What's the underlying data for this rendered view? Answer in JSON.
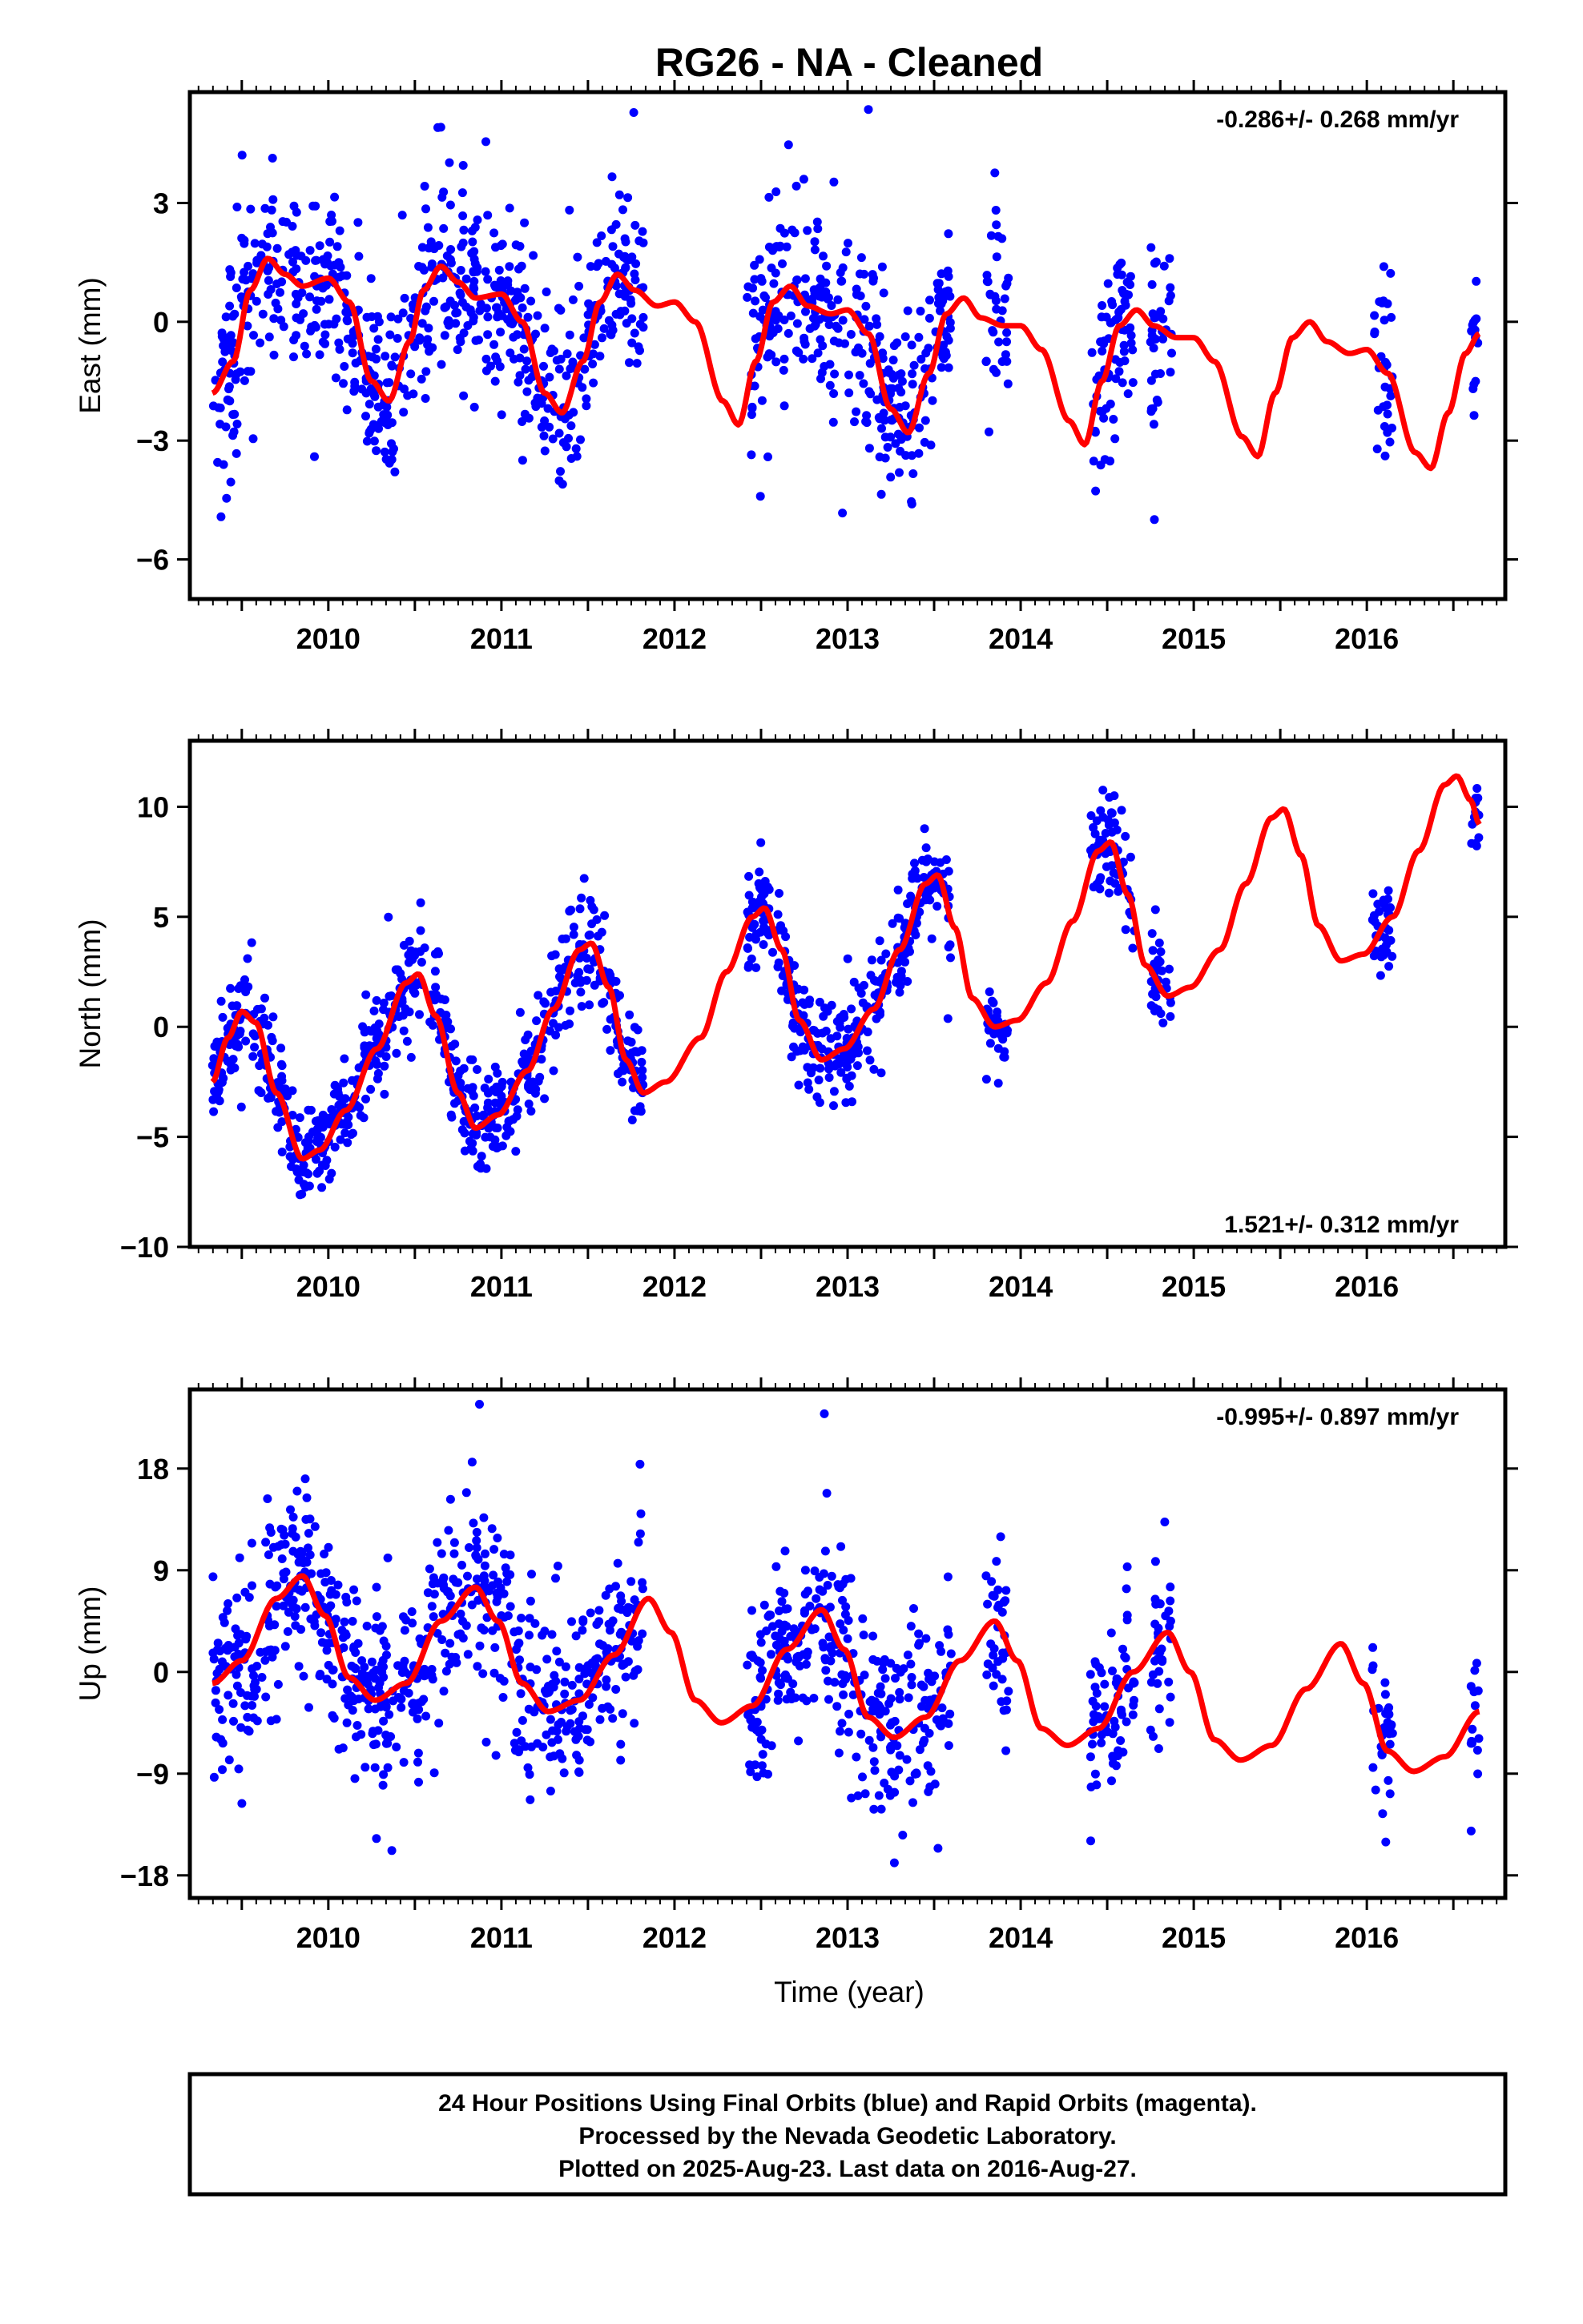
{
  "title": "RG26  - NA - Cleaned",
  "xlabel": "Time (year)",
  "footer": {
    "line1": "24 Hour Positions Using Final Orbits (blue) and Rapid Orbits (magenta).",
    "line2": "Processed by the Nevada Geodetic Laboratory.",
    "line3": "Plotted on 2025-Aug-23. Last data on 2016-Aug-27."
  },
  "colors": {
    "points": "#0000ff",
    "model": "#ff0000",
    "frame": "#000000"
  },
  "chart_data": [
    {
      "type": "scatter",
      "component": "east",
      "ylabel": "East (mm)",
      "rate_text": "-0.286+/- 0.268 mm/yr",
      "rate_position": "top-right",
      "xlim": [
        2009.2,
        2016.8
      ],
      "ylim": [
        -7.0,
        5.8
      ],
      "xticks": [
        2010,
        2011,
        2012,
        2013,
        2014,
        2015,
        2016
      ],
      "yticks": [
        -6,
        -3,
        0,
        3
      ],
      "data_spans": [
        [
          2009.33,
          2011.82
        ],
        [
          2012.42,
          2013.6
        ],
        [
          2013.8,
          2013.93
        ],
        [
          2014.4,
          2014.66
        ],
        [
          2014.75,
          2014.88
        ],
        [
          2016.03,
          2016.15
        ],
        [
          2016.6,
          2016.65
        ]
      ],
      "model": {
        "description": "red fitted curve, knots in (year, mm)",
        "knots": [
          [
            2009.33,
            -1.8
          ],
          [
            2009.45,
            -1.0
          ],
          [
            2009.55,
            0.8
          ],
          [
            2009.65,
            1.6
          ],
          [
            2009.75,
            1.2
          ],
          [
            2009.85,
            0.9
          ],
          [
            2010.0,
            1.1
          ],
          [
            2010.12,
            0.5
          ],
          [
            2010.25,
            -1.5
          ],
          [
            2010.35,
            -2.0
          ],
          [
            2010.47,
            -0.5
          ],
          [
            2010.55,
            0.8
          ],
          [
            2010.65,
            1.4
          ],
          [
            2010.75,
            1.0
          ],
          [
            2010.85,
            0.6
          ],
          [
            2011.0,
            0.7
          ],
          [
            2011.12,
            0.0
          ],
          [
            2011.25,
            -1.8
          ],
          [
            2011.35,
            -2.3
          ],
          [
            2011.47,
            -1.0
          ],
          [
            2011.57,
            0.5
          ],
          [
            2011.67,
            1.2
          ],
          [
            2011.77,
            0.8
          ],
          [
            2011.9,
            0.4
          ],
          [
            2012.0,
            0.5
          ],
          [
            2012.12,
            0.0
          ],
          [
            2012.28,
            -2.0
          ],
          [
            2012.37,
            -2.6
          ],
          [
            2012.47,
            -1.0
          ],
          [
            2012.57,
            0.5
          ],
          [
            2012.67,
            0.9
          ],
          [
            2012.77,
            0.4
          ],
          [
            2012.9,
            0.2
          ],
          [
            2013.0,
            0.3
          ],
          [
            2013.12,
            -0.3
          ],
          [
            2013.25,
            -2.2
          ],
          [
            2013.35,
            -2.8
          ],
          [
            2013.47,
            -1.3
          ],
          [
            2013.57,
            0.2
          ],
          [
            2013.67,
            0.6
          ],
          [
            2013.77,
            0.1
          ],
          [
            2013.9,
            -0.1
          ],
          [
            2014.0,
            -0.1
          ],
          [
            2014.12,
            -0.7
          ],
          [
            2014.28,
            -2.5
          ],
          [
            2014.37,
            -3.1
          ],
          [
            2014.47,
            -1.5
          ],
          [
            2014.57,
            -0.1
          ],
          [
            2014.67,
            0.3
          ],
          [
            2014.77,
            -0.1
          ],
          [
            2014.9,
            -0.4
          ],
          [
            2015.0,
            -0.4
          ],
          [
            2015.12,
            -1.0
          ],
          [
            2015.28,
            -2.9
          ],
          [
            2015.37,
            -3.4
          ],
          [
            2015.47,
            -1.8
          ],
          [
            2015.57,
            -0.4
          ],
          [
            2015.67,
            0.0
          ],
          [
            2015.77,
            -0.5
          ],
          [
            2015.9,
            -0.8
          ],
          [
            2016.0,
            -0.7
          ],
          [
            2016.12,
            -1.3
          ],
          [
            2016.28,
            -3.3
          ],
          [
            2016.37,
            -3.7
          ],
          [
            2016.47,
            -2.3
          ],
          [
            2016.57,
            -0.8
          ],
          [
            2016.65,
            -0.3
          ]
        ]
      },
      "noise_mm": 1.2,
      "point_count": 1180,
      "seed": 11
    },
    {
      "type": "scatter",
      "component": "north",
      "ylabel": "North (mm)",
      "rate_text": "1.521+/- 0.312 mm/yr",
      "rate_position": "bottom-right",
      "xlim": [
        2009.2,
        2016.8
      ],
      "ylim": [
        -10.0,
        13.0
      ],
      "xticks": [
        2010,
        2011,
        2012,
        2013,
        2014,
        2015,
        2016
      ],
      "yticks": [
        -10,
        -5,
        0,
        5,
        10
      ],
      "data_spans": [
        [
          2009.33,
          2011.82
        ],
        [
          2012.42,
          2013.6
        ],
        [
          2013.8,
          2013.93
        ],
        [
          2014.4,
          2014.66
        ],
        [
          2014.75,
          2014.88
        ],
        [
          2016.03,
          2016.15
        ],
        [
          2016.6,
          2016.65
        ]
      ],
      "model": {
        "description": "red fitted curve, knots in (year, mm)",
        "knots": [
          [
            2009.33,
            -2.5
          ],
          [
            2009.42,
            -0.5
          ],
          [
            2009.5,
            0.7
          ],
          [
            2009.58,
            0.2
          ],
          [
            2009.7,
            -3.0
          ],
          [
            2009.85,
            -6.0
          ],
          [
            2009.95,
            -5.6
          ],
          [
            2010.1,
            -3.8
          ],
          [
            2010.28,
            -1.0
          ],
          [
            2010.45,
            2.0
          ],
          [
            2010.52,
            2.4
          ],
          [
            2010.62,
            0.5
          ],
          [
            2010.75,
            -3.0
          ],
          [
            2010.85,
            -4.6
          ],
          [
            2010.98,
            -4.0
          ],
          [
            2011.15,
            -2.0
          ],
          [
            2011.3,
            0.8
          ],
          [
            2011.45,
            3.5
          ],
          [
            2011.52,
            3.8
          ],
          [
            2011.62,
            1.8
          ],
          [
            2011.72,
            -1.5
          ],
          [
            2011.82,
            -3.0
          ],
          [
            2011.95,
            -2.5
          ],
          [
            2012.15,
            -0.5
          ],
          [
            2012.3,
            2.5
          ],
          [
            2012.45,
            5.0
          ],
          [
            2012.52,
            5.4
          ],
          [
            2012.62,
            3.5
          ],
          [
            2012.72,
            0.3
          ],
          [
            2012.85,
            -1.5
          ],
          [
            2012.98,
            -1.0
          ],
          [
            2013.15,
            0.8
          ],
          [
            2013.3,
            3.5
          ],
          [
            2013.45,
            6.5
          ],
          [
            2013.52,
            6.9
          ],
          [
            2013.62,
            4.5
          ],
          [
            2013.72,
            1.3
          ],
          [
            2013.85,
            0.0
          ],
          [
            2013.98,
            0.3
          ],
          [
            2014.15,
            2.0
          ],
          [
            2014.3,
            4.8
          ],
          [
            2014.45,
            8.0
          ],
          [
            2014.52,
            8.4
          ],
          [
            2014.62,
            6.0
          ],
          [
            2014.72,
            2.8
          ],
          [
            2014.85,
            1.4
          ],
          [
            2014.98,
            1.8
          ],
          [
            2015.15,
            3.5
          ],
          [
            2015.3,
            6.5
          ],
          [
            2015.45,
            9.5
          ],
          [
            2015.52,
            9.9
          ],
          [
            2015.62,
            7.8
          ],
          [
            2015.72,
            4.6
          ],
          [
            2015.85,
            3.0
          ],
          [
            2015.98,
            3.3
          ],
          [
            2016.15,
            5.0
          ],
          [
            2016.3,
            8.0
          ],
          [
            2016.45,
            11.0
          ],
          [
            2016.52,
            11.4
          ],
          [
            2016.6,
            10.3
          ],
          [
            2016.65,
            9.2
          ]
        ]
      },
      "noise_mm": 1.1,
      "point_count": 1180,
      "seed": 22
    },
    {
      "type": "scatter",
      "component": "up",
      "ylabel": "Up (mm)",
      "rate_text": "-0.995+/- 0.897 mm/yr",
      "rate_position": "top-right",
      "xlim": [
        2009.2,
        2016.8
      ],
      "ylim": [
        -20.0,
        25.0
      ],
      "xticks": [
        2010,
        2011,
        2012,
        2013,
        2014,
        2015,
        2016
      ],
      "yticks": [
        -18,
        -9,
        0,
        9,
        18
      ],
      "data_spans": [
        [
          2009.33,
          2011.82
        ],
        [
          2012.42,
          2013.6
        ],
        [
          2013.8,
          2013.93
        ],
        [
          2014.4,
          2014.66
        ],
        [
          2014.75,
          2014.88
        ],
        [
          2016.03,
          2016.15
        ],
        [
          2016.6,
          2016.65
        ]
      ],
      "model": {
        "description": "red fitted curve, knots in (year, mm)",
        "knots": [
          [
            2009.33,
            -1.0
          ],
          [
            2009.5,
            1.0
          ],
          [
            2009.7,
            6.5
          ],
          [
            2009.85,
            8.5
          ],
          [
            2009.98,
            5.0
          ],
          [
            2010.12,
            -0.5
          ],
          [
            2010.27,
            -2.5
          ],
          [
            2010.45,
            -1.0
          ],
          [
            2010.65,
            4.5
          ],
          [
            2010.85,
            7.5
          ],
          [
            2010.98,
            4.5
          ],
          [
            2011.12,
            -1.0
          ],
          [
            2011.27,
            -3.5
          ],
          [
            2011.45,
            -2.5
          ],
          [
            2011.65,
            1.5
          ],
          [
            2011.85,
            6.5
          ],
          [
            2011.98,
            3.5
          ],
          [
            2012.12,
            -2.5
          ],
          [
            2012.27,
            -4.5
          ],
          [
            2012.45,
            -3.0
          ],
          [
            2012.65,
            2.0
          ],
          [
            2012.85,
            5.5
          ],
          [
            2012.98,
            2.0
          ],
          [
            2013.12,
            -4.0
          ],
          [
            2013.27,
            -5.8
          ],
          [
            2013.45,
            -4.0
          ],
          [
            2013.65,
            1.0
          ],
          [
            2013.85,
            4.5
          ],
          [
            2013.98,
            1.0
          ],
          [
            2014.12,
            -5.0
          ],
          [
            2014.27,
            -6.5
          ],
          [
            2014.45,
            -5.0
          ],
          [
            2014.65,
            0.0
          ],
          [
            2014.85,
            3.5
          ],
          [
            2014.98,
            0.0
          ],
          [
            2015.12,
            -6.0
          ],
          [
            2015.27,
            -7.8
          ],
          [
            2015.45,
            -6.5
          ],
          [
            2015.65,
            -1.5
          ],
          [
            2015.85,
            2.5
          ],
          [
            2015.98,
            -1.0
          ],
          [
            2016.12,
            -7.0
          ],
          [
            2016.27,
            -8.8
          ],
          [
            2016.45,
            -7.5
          ],
          [
            2016.65,
            -3.5
          ]
        ]
      },
      "noise_mm": 4.2,
      "point_count": 1180,
      "seed": 33
    }
  ]
}
